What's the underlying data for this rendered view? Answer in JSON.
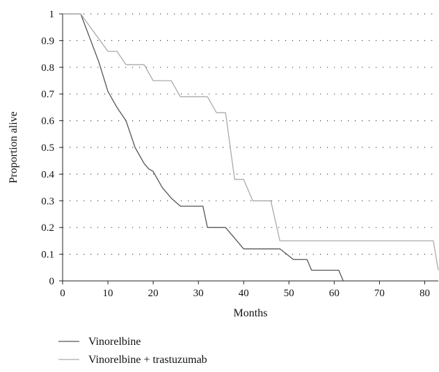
{
  "chart_data": {
    "type": "line",
    "title": "",
    "xlabel": "Months",
    "ylabel": "Proportion alive",
    "xlim": [
      0,
      83
    ],
    "ylim": [
      0,
      1
    ],
    "xticks": [
      0,
      10,
      20,
      30,
      40,
      50,
      60,
      70,
      80
    ],
    "yticks": [
      0,
      0.1,
      0.2,
      0.3,
      0.4,
      0.5,
      0.6,
      0.7,
      0.8,
      0.9,
      1
    ],
    "ytick_labels": [
      "0",
      "0.1",
      "0.2",
      "0.3",
      "0.4",
      "0.5",
      "0.6",
      "0.7",
      "0.8",
      "0.9",
      "1"
    ],
    "grid": "horizontal-dotted",
    "legend_position": "bottom",
    "series": [
      {
        "name": "Vinorelbine",
        "color": "#555555",
        "x": [
          0,
          4,
          6,
          8,
          10,
          12,
          14,
          16,
          18,
          19,
          20,
          22,
          24,
          26,
          31,
          32,
          36,
          40,
          46,
          48,
          51,
          54,
          55,
          58,
          61,
          62
        ],
        "y": [
          1,
          1,
          0.91,
          0.82,
          0.71,
          0.65,
          0.6,
          0.5,
          0.44,
          0.42,
          0.41,
          0.35,
          0.31,
          0.28,
          0.28,
          0.2,
          0.2,
          0.12,
          0.12,
          0.12,
          0.08,
          0.08,
          0.04,
          0.04,
          0.04,
          0
        ]
      },
      {
        "name": "Vinorelbine + trastuzumab",
        "color": "#aaaaaa",
        "x": [
          0,
          4,
          10,
          11.9,
          12,
          14,
          17.9,
          18,
          20,
          23.9,
          24,
          26,
          31.9,
          32,
          34,
          35.9,
          36,
          38,
          39.9,
          40,
          42,
          45.9,
          46,
          48,
          81.9,
          83
        ],
        "y": [
          1,
          1,
          0.86,
          0.86,
          0.86,
          0.81,
          0.81,
          0.81,
          0.75,
          0.75,
          0.75,
          0.69,
          0.69,
          0.69,
          0.63,
          0.63,
          0.63,
          0.38,
          0.38,
          0.38,
          0.3,
          0.3,
          0.3,
          0.15,
          0.15,
          0.04
        ]
      }
    ]
  }
}
